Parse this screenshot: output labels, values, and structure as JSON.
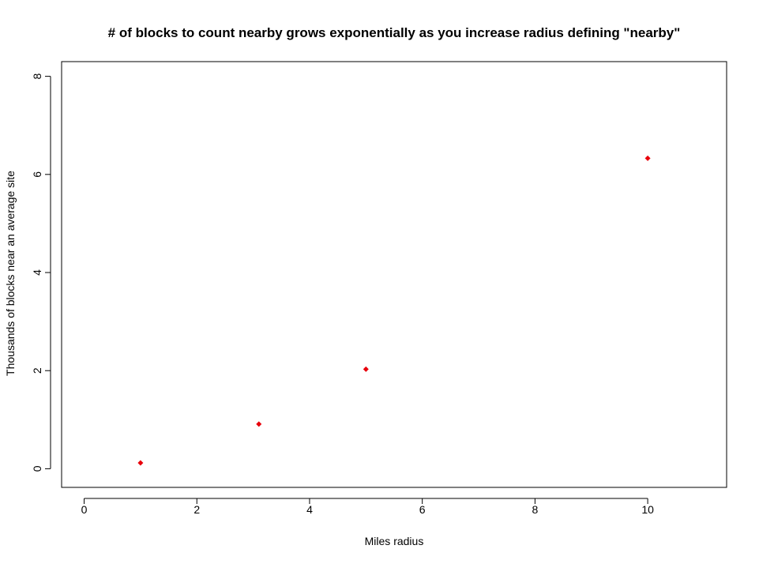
{
  "chart_data": {
    "type": "scatter",
    "title": "# of blocks to count nearby grows exponentially as you increase radius defining \"nearby\"",
    "xlabel": "Miles radius",
    "ylabel": "Thousands of blocks near an average site",
    "xlim": [
      -0.4,
      11.4
    ],
    "ylim": [
      -0.38,
      8.3
    ],
    "xticks": [
      0,
      2,
      4,
      6,
      8,
      10
    ],
    "yticks": [
      0,
      2,
      4,
      6,
      8
    ],
    "grid": false,
    "point_color": "#e8000b",
    "series": [
      {
        "x": [
          1,
          3.1,
          5,
          10
        ],
        "y": [
          0.12,
          0.91,
          2.03,
          6.33
        ]
      }
    ]
  }
}
